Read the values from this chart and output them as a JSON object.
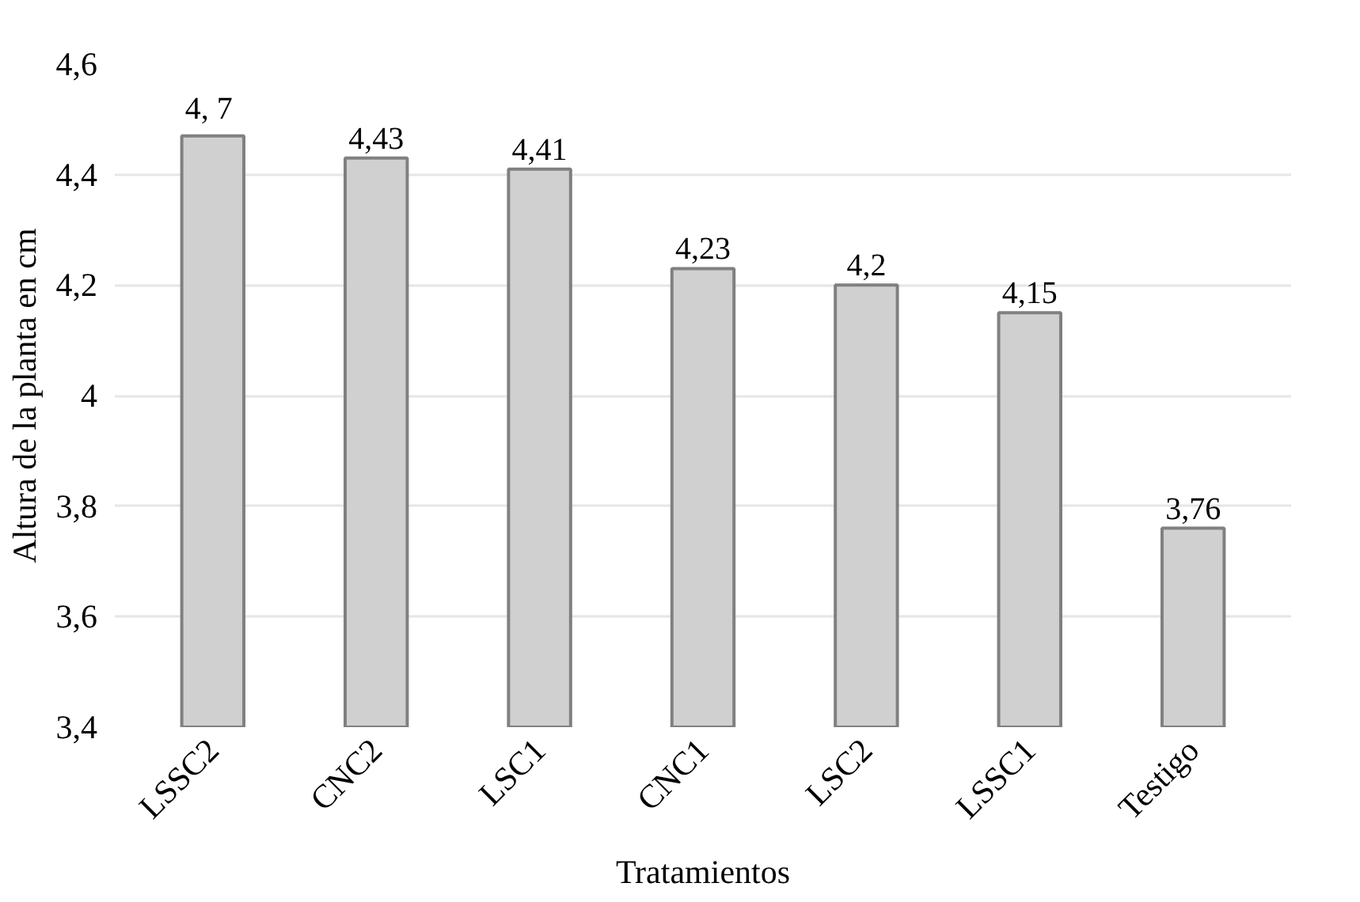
{
  "chart_data": {
    "type": "bar",
    "xlabel": "Tratamientos",
    "ylabel": "Altura de la planta en cm",
    "categories": [
      "LSSC2",
      "CNC2",
      "LSC1",
      "CNC1",
      "LSC2",
      "LSSC1",
      "Testigo"
    ],
    "values": [
      4.47,
      4.43,
      4.41,
      4.23,
      4.2,
      4.15,
      3.76
    ],
    "value_labels": [
      "4,  7",
      "4,43",
      "4,41",
      "4,23",
      "4,2",
      "4,15",
      "3,76"
    ],
    "color": "#d0d0d0",
    "ylim": [
      3.4,
      4.6
    ],
    "yticks": [
      {
        "value": 3.4,
        "label": "3,4"
      },
      {
        "value": 3.6,
        "label": "3,6"
      },
      {
        "value": 3.8,
        "label": "3,8"
      },
      {
        "value": 4,
        "label": "4"
      },
      {
        "value": 4.2,
        "label": "4,2"
      },
      {
        "value": 4.4,
        "label": "4,4"
      },
      {
        "value": 4.6,
        "label": "4,6"
      }
    ],
    "grid": "y"
  }
}
